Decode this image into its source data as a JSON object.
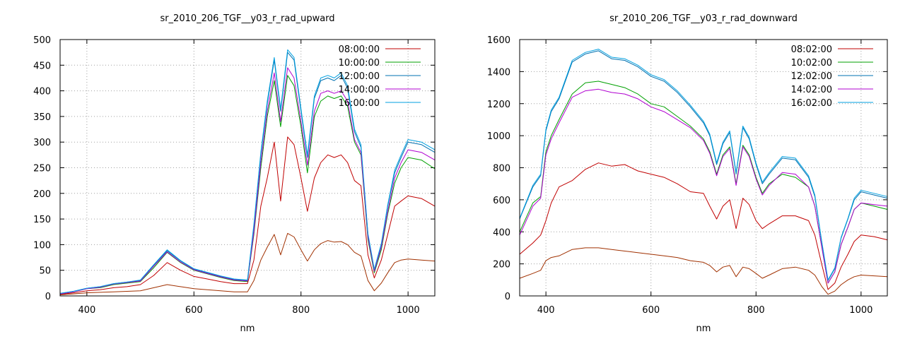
{
  "chart_data": [
    {
      "type": "line",
      "title": "sr_2010_206_TGF__y03_r_rad_upward",
      "xlabel": "nm",
      "ylabel": "",
      "xlim": [
        350,
        1050
      ],
      "ylim": [
        0,
        500
      ],
      "xticks": [
        400,
        600,
        800,
        1000
      ],
      "yticks": [
        0,
        50,
        100,
        150,
        200,
        250,
        300,
        350,
        400,
        450,
        500
      ],
      "grid": true,
      "legend_position": "top-right",
      "x": [
        350,
        375,
        400,
        425,
        450,
        475,
        500,
        525,
        550,
        575,
        600,
        625,
        650,
        675,
        700,
        712,
        725,
        737,
        750,
        762,
        775,
        787,
        800,
        812,
        825,
        837,
        850,
        862,
        875,
        887,
        900,
        912,
        925,
        937,
        950,
        962,
        975,
        987,
        1000,
        1025,
        1050
      ],
      "series": [
        {
          "name": "08:00:00",
          "color": "#c00000",
          "values": [
            3,
            6,
            10,
            12,
            16,
            18,
            22,
            40,
            65,
            50,
            38,
            33,
            28,
            24,
            24,
            70,
            175,
            230,
            300,
            185,
            310,
            295,
            230,
            165,
            230,
            260,
            275,
            270,
            275,
            260,
            225,
            215,
            80,
            35,
            70,
            120,
            175,
            185,
            195,
            190,
            175
          ]
        },
        {
          "name": "10:00:00",
          "color": "#00a000",
          "values": [
            4,
            8,
            14,
            16,
            22,
            25,
            28,
            55,
            85,
            65,
            50,
            43,
            36,
            30,
            28,
            120,
            250,
            350,
            420,
            330,
            430,
            410,
            330,
            240,
            350,
            380,
            390,
            385,
            390,
            370,
            300,
            275,
            110,
            45,
            90,
            160,
            220,
            250,
            270,
            265,
            248
          ]
        },
        {
          "name": "12:00:00",
          "color": "#0070b0",
          "values": [
            5,
            9,
            15,
            18,
            24,
            27,
            30,
            60,
            88,
            68,
            52,
            45,
            38,
            32,
            30,
            135,
            275,
            375,
            460,
            360,
            475,
            460,
            360,
            270,
            385,
            420,
            425,
            420,
            430,
            405,
            320,
            290,
            120,
            50,
            100,
            175,
            240,
            270,
            300,
            295,
            280
          ]
        },
        {
          "name": "14:00:00",
          "color": "#b000d0",
          "values": [
            4,
            8,
            14,
            17,
            23,
            26,
            29,
            58,
            86,
            66,
            51,
            44,
            37,
            31,
            29,
            125,
            260,
            360,
            435,
            340,
            445,
            425,
            340,
            255,
            360,
            395,
            400,
            395,
            400,
            380,
            305,
            280,
            115,
            48,
            95,
            165,
            230,
            260,
            285,
            280,
            265
          ]
        },
        {
          "name": "16:00:00",
          "color": "#00a0e0",
          "values": [
            5,
            9,
            15,
            18,
            24,
            27,
            31,
            61,
            90,
            69,
            53,
            46,
            39,
            33,
            31,
            140,
            280,
            380,
            465,
            365,
            480,
            465,
            365,
            275,
            390,
            425,
            430,
            425,
            435,
            410,
            325,
            295,
            122,
            52,
            102,
            178,
            245,
            275,
            305,
            300,
            285
          ]
        },
        {
          "name": "",
          "color": "#a03000",
          "values": [
            2,
            4,
            6,
            7,
            8,
            9,
            10,
            16,
            22,
            18,
            14,
            12,
            10,
            8,
            8,
            30,
            70,
            95,
            120,
            80,
            122,
            115,
            90,
            68,
            90,
            102,
            108,
            105,
            106,
            100,
            85,
            78,
            30,
            10,
            25,
            45,
            65,
            70,
            72,
            70,
            68
          ]
        }
      ]
    },
    {
      "type": "line",
      "title": "sr_2010_206_TGF__y03_r_rad_downward",
      "xlabel": "nm",
      "ylabel": "",
      "xlim": [
        350,
        1050
      ],
      "ylim": [
        0,
        1600
      ],
      "xticks": [
        400,
        600,
        800,
        1000
      ],
      "yticks": [
        0,
        200,
        400,
        600,
        800,
        1000,
        1200,
        1400,
        1600
      ],
      "grid": true,
      "legend_position": "top-right",
      "x": [
        350,
        375,
        390,
        400,
        410,
        425,
        450,
        475,
        500,
        525,
        550,
        575,
        600,
        625,
        650,
        675,
        700,
        712,
        725,
        737,
        750,
        762,
        775,
        787,
        800,
        812,
        825,
        850,
        875,
        900,
        912,
        925,
        937,
        950,
        962,
        975,
        987,
        1000,
        1025,
        1050
      ],
      "series": [
        {
          "name": "08:02:00",
          "color": "#c00000",
          "values": [
            260,
            330,
            380,
            470,
            580,
            680,
            720,
            790,
            830,
            810,
            820,
            780,
            760,
            740,
            700,
            650,
            640,
            560,
            480,
            560,
            600,
            420,
            610,
            570,
            470,
            420,
            450,
            500,
            500,
            470,
            380,
            200,
            40,
            80,
            180,
            260,
            340,
            380,
            370,
            350
          ]
        },
        {
          "name": "10:02:00",
          "color": "#00a000",
          "values": [
            400,
            580,
            620,
            900,
            1000,
            1100,
            1260,
            1330,
            1340,
            1320,
            1300,
            1260,
            1200,
            1180,
            1120,
            1060,
            980,
            900,
            760,
            880,
            930,
            700,
            940,
            880,
            740,
            640,
            700,
            760,
            740,
            680,
            560,
            310,
            80,
            150,
            320,
            430,
            540,
            580,
            560,
            540
          ]
        },
        {
          "name": "12:02:00",
          "color": "#0070b0",
          "values": [
            480,
            680,
            750,
            1030,
            1150,
            1230,
            1460,
            1510,
            1530,
            1480,
            1470,
            1430,
            1370,
            1340,
            1270,
            1180,
            1080,
            1000,
            820,
            950,
            1020,
            760,
            1050,
            980,
            820,
            700,
            760,
            860,
            850,
            740,
            620,
            340,
            95,
            170,
            360,
            480,
            600,
            650,
            630,
            610
          ]
        },
        {
          "name": "14:02:00",
          "color": "#b000d0",
          "values": [
            380,
            560,
            610,
            880,
            980,
            1080,
            1240,
            1280,
            1290,
            1270,
            1260,
            1230,
            1180,
            1150,
            1100,
            1050,
            970,
            890,
            750,
            870,
            920,
            690,
            930,
            870,
            730,
            630,
            690,
            770,
            760,
            680,
            560,
            310,
            80,
            150,
            320,
            430,
            540,
            580,
            570,
            560
          ]
        },
        {
          "name": "16:02:00",
          "color": "#00a0e0",
          "values": [
            485,
            690,
            760,
            1040,
            1160,
            1240,
            1470,
            1520,
            1540,
            1490,
            1480,
            1440,
            1380,
            1350,
            1280,
            1190,
            1090,
            1010,
            830,
            960,
            1030,
            770,
            1060,
            990,
            830,
            710,
            770,
            870,
            860,
            750,
            630,
            345,
            100,
            175,
            365,
            485,
            610,
            660,
            640,
            620
          ]
        },
        {
          "name": "",
          "color": "#a03000",
          "values": [
            110,
            140,
            160,
            220,
            240,
            250,
            290,
            300,
            300,
            290,
            280,
            270,
            260,
            250,
            240,
            220,
            210,
            190,
            150,
            180,
            190,
            120,
            180,
            170,
            140,
            110,
            130,
            170,
            180,
            160,
            130,
            60,
            10,
            30,
            70,
            100,
            120,
            130,
            125,
            120
          ]
        }
      ]
    }
  ]
}
